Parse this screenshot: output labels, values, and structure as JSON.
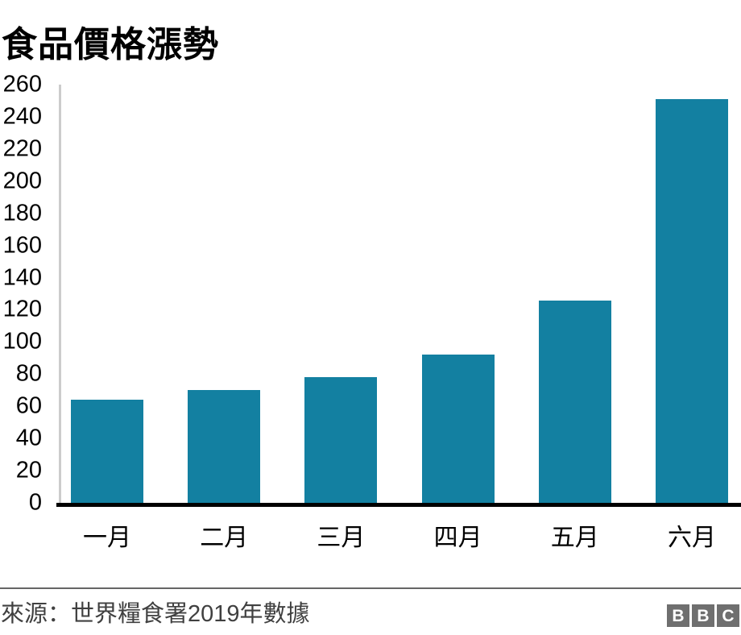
{
  "title": "食品價格漲勢",
  "chart_data": {
    "type": "bar",
    "title": "食品價格漲勢",
    "categories": [
      "一月",
      "二月",
      "三月",
      "四月",
      "五月",
      "六月"
    ],
    "values": [
      64,
      70,
      78,
      92,
      126,
      251
    ],
    "xlabel": "",
    "ylabel": "",
    "ylim": [
      0,
      260
    ],
    "ytick_step": 20,
    "grid": false,
    "legend": false,
    "bar_color": "#1380a1",
    "axis_line_color": "#cccccc",
    "baseline_color": "#000000"
  },
  "footer": {
    "source": "來源：世界糧食署2019年數據",
    "logo_letters": [
      "B",
      "B",
      "C"
    ]
  },
  "colors": {
    "accent": "#1380a1",
    "title_text": "#000000",
    "tick_text": "#000000",
    "source_text": "#404040",
    "divider": "#666666",
    "logo_background": "#6f6f6f",
    "logo_letter": "#ffffff"
  }
}
